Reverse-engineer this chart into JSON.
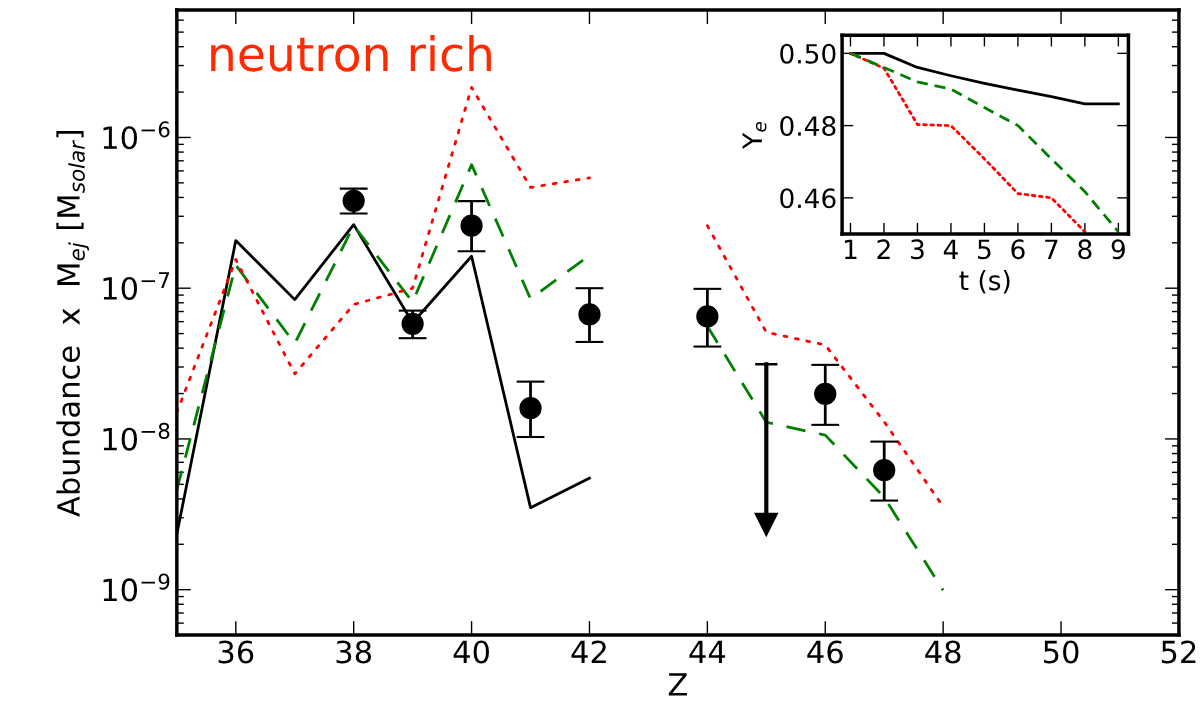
{
  "chart_data": [
    {
      "type": "line",
      "xlabel": "Z",
      "ylabel": "Abundance  x  M$_{ej}$ [M$_{solar}$]",
      "annotations": [
        "neutron rich"
      ],
      "log": "y",
      "xlim": [
        35,
        52
      ],
      "xticks": [
        36,
        38,
        40,
        42,
        44,
        46,
        48,
        50,
        52
      ],
      "ylim": [
        5e-10,
        7e-06
      ],
      "yticks": [
        {
          "value": 1e-09,
          "label": "10$^{−9}$"
        },
        {
          "value": 1e-08,
          "label": "10$^{−8}$"
        },
        {
          "value": 1e-07,
          "label": "10$^{−7}$"
        },
        {
          "value": 1e-06,
          "label": "10$^{−6}$"
        }
      ],
      "series": [
        {
          "type": "line",
          "line_style": "solid",
          "color": "#000000",
          "x": [
            35,
            36,
            37,
            38,
            39,
            40,
            41,
            42
          ],
          "values": [
            2.34e-09,
            2.07e-07,
            8.4e-08,
            2.64e-07,
            5.9e-08,
            1.63e-07,
            3.5e-09,
            5.5e-09
          ]
        },
        {
          "type": "line",
          "line_style": "dashed",
          "color": "#008000",
          "x": [
            35,
            36,
            37,
            38,
            39,
            40,
            41,
            42,
            43,
            44,
            45,
            46,
            47,
            48
          ],
          "values": [
            4.6e-09,
            1.42e-07,
            4.3e-08,
            2.6e-07,
            8.1e-08,
            6.6e-07,
            8.5e-08,
            1.65e-07,
            null,
            5.6e-08,
            1.29e-08,
            1.06e-08,
            4.1e-09,
            9.9e-10
          ]
        },
        {
          "type": "line",
          "line_style": "dotted",
          "color": "#ff0000",
          "x": [
            35,
            36,
            37,
            38,
            39,
            40,
            41,
            42,
            43,
            44,
            45,
            46,
            47,
            48
          ],
          "values": [
            1.5e-08,
            1.55e-07,
            2.7e-08,
            7.8e-08,
            1e-07,
            2.15e-06,
            4.66e-07,
            5.4e-07,
            null,
            2.6e-07,
            5.1e-08,
            4.2e-08,
            1.3e-08,
            3.55e-09
          ]
        },
        {
          "type": "scatter",
          "marker": "circle",
          "color": "#000000",
          "x": [
            38,
            39,
            40,
            41,
            42,
            44,
            46,
            47
          ],
          "values": [
            3.8e-07,
            5.8e-08,
            2.6e-07,
            1.6e-08,
            6.7e-08,
            6.5e-08,
            1.99e-08,
            6.2e-09
          ],
          "errors": [
            [
              3.13e-07,
              4.58e-07
            ],
            [
              4.66e-08,
              7.1e-08
            ],
            [
              1.76e-07,
              3.78e-07
            ],
            [
              1.03e-08,
              2.4e-08
            ],
            [
              4.4e-08,
              1e-07
            ],
            [
              4.1e-08,
              9.9e-08
            ],
            [
              1.24e-08,
              3.1e-08
            ],
            [
              3.9e-09,
              9.6e-09
            ]
          ]
        },
        {
          "type": "line",
          "line_style": "solid",
          "marker": "triangle",
          "color": "#000000",
          "x": [
            45,
            45
          ],
          "values": [
            3.13e-08,
            2.7e-09
          ]
        }
      ]
    },
    {
      "type": "line",
      "xlabel": "t (s)",
      "ylabel": "Y$_{e}$",
      "xlim": [
        0.75,
        9.3
      ],
      "xticks": [
        1,
        2,
        3,
        4,
        5,
        6,
        7,
        8,
        9
      ],
      "ylim": [
        0.45,
        0.505
      ],
      "yticks": [
        {
          "value": 0.46,
          "label": "0.46"
        },
        {
          "value": 0.48,
          "label": "0.48"
        },
        {
          "value": 0.5,
          "label": "0.50"
        }
      ],
      "x": [
        1,
        2,
        3,
        4,
        5,
        6,
        7,
        8,
        9
      ],
      "series": [
        {
          "line_style": "solid",
          "color": "#000000",
          "values": [
            0.5,
            0.5,
            0.4961,
            0.4938,
            0.4917,
            0.4898,
            0.488,
            0.486,
            0.486
          ]
        },
        {
          "line_style": "dashed",
          "color": "#008000",
          "values": [
            0.5,
            0.4961,
            0.4921,
            0.4901,
            0.485,
            0.48,
            0.4708,
            0.4617,
            0.4506
          ]
        },
        {
          "line_style": "dotted",
          "color": "#ff0000",
          "values": [
            0.5,
            0.4959,
            0.4803,
            0.48,
            0.4708,
            0.4612,
            0.46,
            0.4506,
            null
          ]
        }
      ]
    }
  ]
}
